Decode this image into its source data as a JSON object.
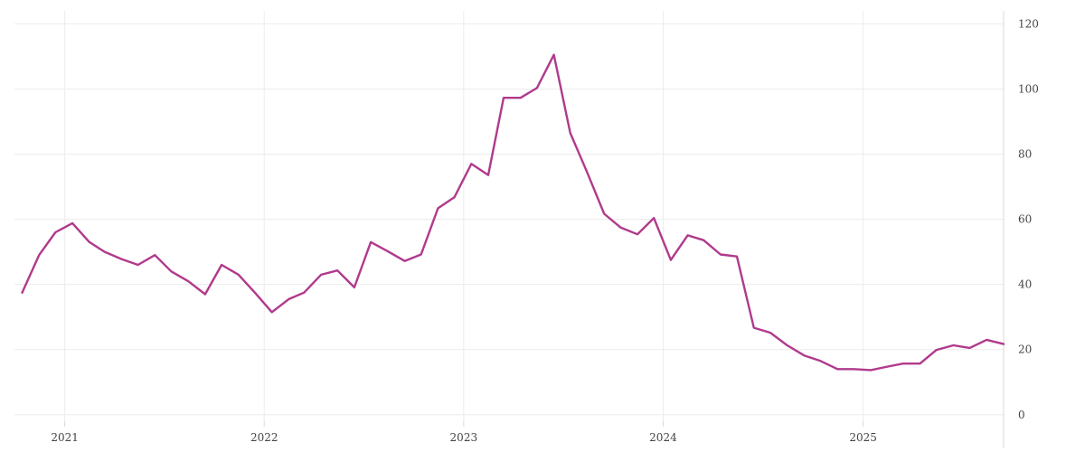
{
  "chart_data": {
    "type": "line",
    "title": "",
    "xlabel": "",
    "ylabel": "",
    "x_tick_labels": [
      "2021",
      "2022",
      "2023",
      "2024",
      "2025"
    ],
    "y_ticks": [
      0,
      20,
      40,
      60,
      80,
      100,
      120
    ],
    "ylim": [
      -2,
      124
    ],
    "xlim": [
      "2020-10-01",
      "2025-09-15"
    ],
    "y_axis_side": "right",
    "grid": true,
    "legend": "none",
    "colors": {
      "line": "#b03a8c",
      "grid": "#ececec",
      "text": "#444444"
    },
    "series": [
      {
        "x": [
          "2020-10",
          "2020-11",
          "2020-12",
          "2021-01",
          "2021-02",
          "2021-03",
          "2021-04",
          "2021-05",
          "2021-06",
          "2021-07",
          "2021-08",
          "2021-09",
          "2021-10",
          "2021-11",
          "2021-12",
          "2022-01",
          "2022-02",
          "2022-03",
          "2022-04",
          "2022-05",
          "2022-06",
          "2022-07",
          "2022-08",
          "2022-09",
          "2022-10",
          "2022-11",
          "2022-12",
          "2023-01",
          "2023-02",
          "2023-03",
          "2023-04",
          "2023-05",
          "2023-06",
          "2023-07",
          "2023-08",
          "2023-09",
          "2023-10",
          "2023-11",
          "2023-12",
          "2024-01",
          "2024-02",
          "2024-03",
          "2024-04",
          "2024-05",
          "2024-06",
          "2024-07",
          "2024-08",
          "2024-09",
          "2024-10",
          "2024-11",
          "2024-12",
          "2025-01",
          "2025-02",
          "2025-03",
          "2025-04",
          "2025-05",
          "2025-06",
          "2025-07",
          "2025-08",
          "2025-09"
        ],
        "values": [
          37.5,
          49,
          56,
          58.8,
          53,
          50,
          47.8,
          46,
          49,
          44,
          41,
          37,
          46,
          43,
          37.5,
          31.5,
          35.5,
          37.5,
          43,
          44.3,
          39.1,
          53,
          50.2,
          47.2,
          49.2,
          63.4,
          66.8,
          77,
          73.6,
          97.3,
          97.3,
          100.3,
          110.5,
          86.5,
          74.4,
          61.7,
          57.5,
          55.4,
          60.4,
          47.5,
          55.1,
          53.6,
          49.2,
          48.6,
          26.7,
          25.2,
          21.3,
          18.2,
          16.5,
          14,
          14,
          13.7,
          14.8,
          15.7,
          15.7,
          19.9,
          21.3,
          20.5,
          23,
          21.7
        ]
      }
    ]
  }
}
